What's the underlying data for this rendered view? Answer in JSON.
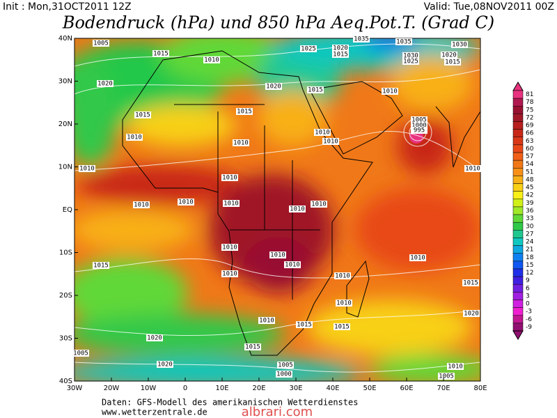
{
  "header": {
    "init": "Init : Mon,31OCT2011 12Z",
    "valid": "Valid: Tue,08NOV2011 00Z",
    "title": "Bodendruck (hPa) und 850 hPa Aeq.Pot.T. (Grad C)"
  },
  "map": {
    "lon_labels": [
      "30W",
      "20W",
      "10W",
      "0",
      "10E",
      "20E",
      "30E",
      "40E",
      "50E",
      "60E",
      "70E",
      "80E"
    ],
    "lat_labels": [
      "40N",
      "30N",
      "20N",
      "10N",
      "EQ",
      "10S",
      "20S",
      "30S",
      "40S"
    ],
    "isobar_labels": [
      "1005",
      "1015",
      "1010",
      "1020",
      "1025",
      "1020",
      "1015",
      "1035",
      "1035",
      "1030",
      "1025",
      "1020",
      "1015",
      "1030",
      "1020",
      "1015",
      "1010",
      "1015",
      "1015",
      "1005",
      "1000",
      "995",
      "1010",
      "1010",
      "1010",
      "1010",
      "1010",
      "1010",
      "1010",
      "1010",
      "1010",
      "1010",
      "1010",
      "1010",
      "1010",
      "1010",
      "1015",
      "1010",
      "1010",
      "1010",
      "1015",
      "1010",
      "1010",
      "1010",
      "1020",
      "1015",
      "1020",
      "1015",
      "1015",
      "1020",
      "1005",
      "1000",
      "1010",
      "1005",
      "1005"
    ]
  },
  "colorbar": {
    "levels": [
      81,
      78,
      75,
      72,
      69,
      66,
      63,
      60,
      57,
      54,
      51,
      48,
      45,
      42,
      39,
      36,
      33,
      30,
      27,
      24,
      21,
      18,
      15,
      12,
      9,
      6,
      3,
      0,
      -3,
      -6,
      -9
    ],
    "colors": [
      "#e8327f",
      "#b01850",
      "#981030",
      "#a01828",
      "#b82020",
      "#c82818",
      "#d83818",
      "#e84818",
      "#f06018",
      "#f07818",
      "#f89018",
      "#f8b018",
      "#f8d018",
      "#f8f018",
      "#d0f018",
      "#a0e828",
      "#60d838",
      "#30c848",
      "#20c890",
      "#10c8c0",
      "#10a8e0",
      "#1080f0",
      "#1058f0",
      "#2030e8",
      "#4020e0",
      "#7020e0",
      "#a020e0",
      "#d020e0",
      "#f020d0",
      "#c01890",
      "#901070"
    ]
  },
  "footer": {
    "source": "Daten: GFS-Modell des amerikanischen Wetterdienstes",
    "site": "www.wetterzentrale.de",
    "watermark": "albrari.com"
  }
}
